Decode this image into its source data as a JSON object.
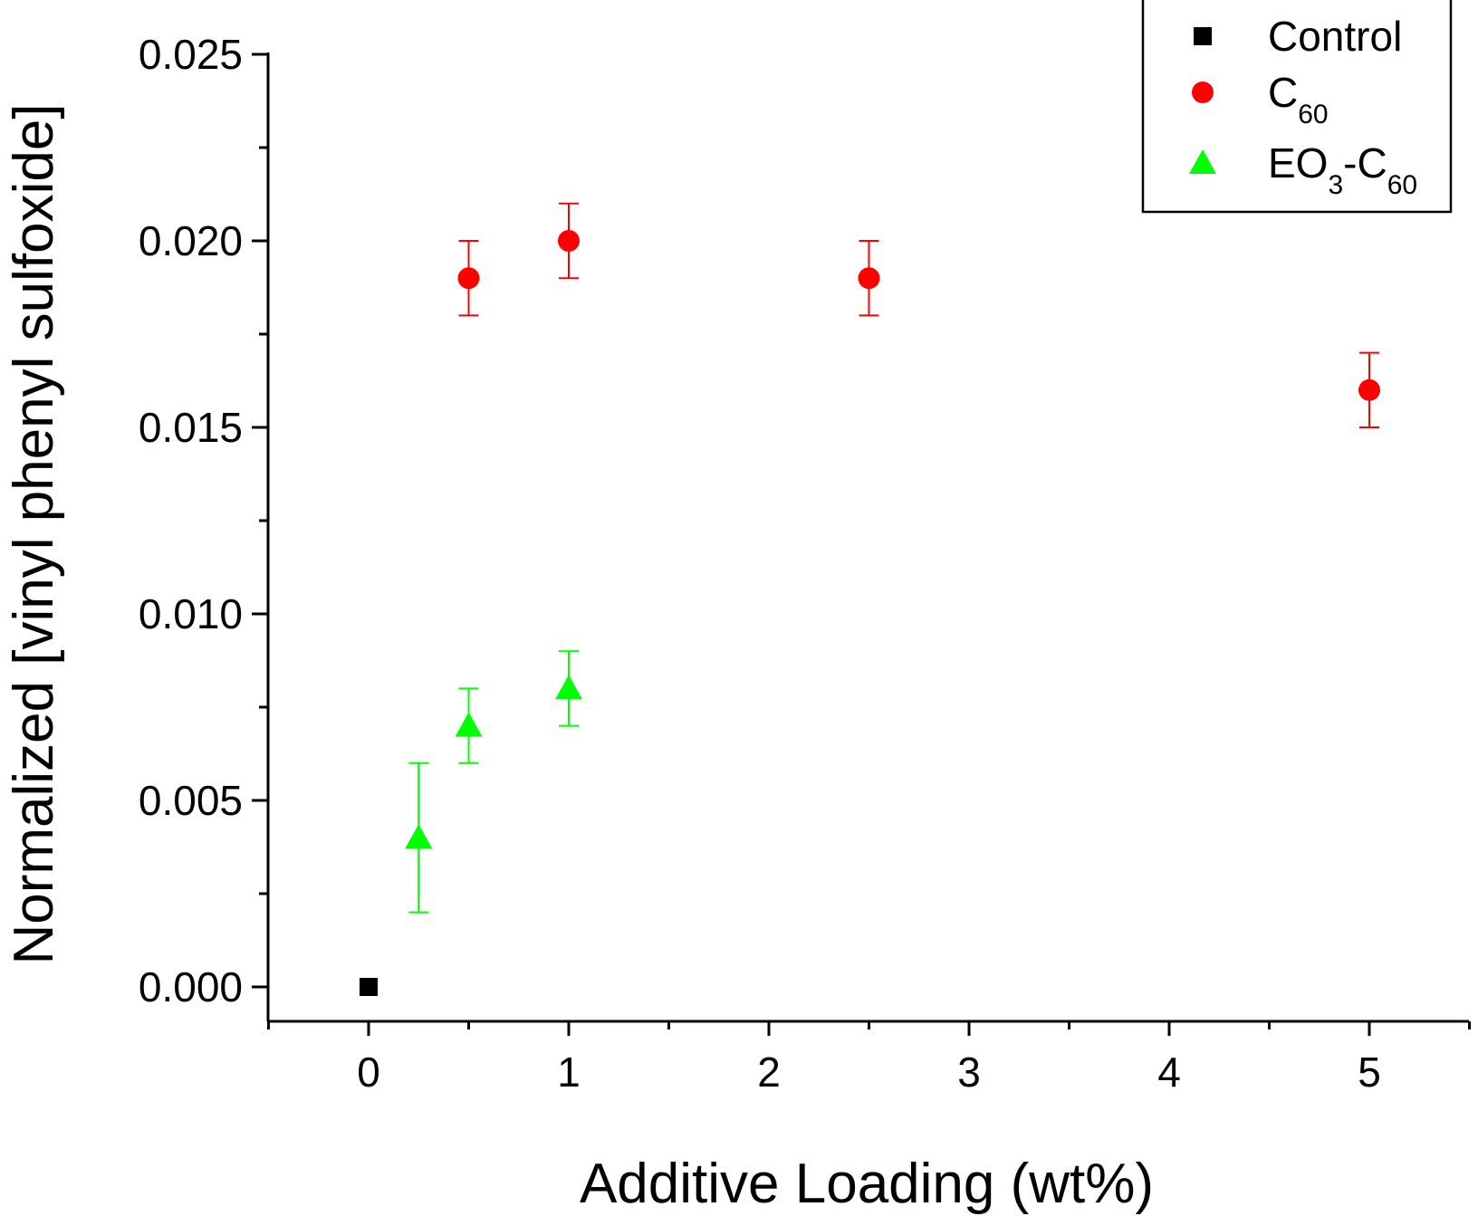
{
  "chart_data": {
    "type": "scatter",
    "title": "",
    "xlabel": "Additive Loading (wt%)",
    "ylabel": "Normalized [vinyl phenyl sulfoxide]",
    "xlim": [
      -0.5,
      5.5
    ],
    "ylim": [
      -0.001,
      0.025
    ],
    "xticks": [
      0,
      1,
      2,
      3,
      4,
      5
    ],
    "xtick_labels": [
      "0",
      "1",
      "2",
      "3",
      "4",
      "5"
    ],
    "yticks": [
      0.0,
      0.005,
      0.01,
      0.015,
      0.02,
      0.025
    ],
    "ytick_labels": [
      "0.000",
      "0.005",
      "0.010",
      "0.015",
      "0.020",
      "0.025"
    ],
    "grid": false,
    "legend_position": "top-right",
    "series": [
      {
        "name": "Control",
        "legend_main": "Control",
        "legend_sub": "",
        "legend_tail": "",
        "legend_sub2": "",
        "marker": "square",
        "color": "#000000",
        "points": [
          {
            "x": 0,
            "y": 0.0,
            "err": 0
          }
        ]
      },
      {
        "name": "C60",
        "legend_main": "C",
        "legend_sub": "60",
        "legend_tail": "",
        "legend_sub2": "",
        "marker": "circle",
        "color": "#ff0000",
        "points": [
          {
            "x": 0.5,
            "y": 0.019,
            "err": 0.001
          },
          {
            "x": 1,
            "y": 0.02,
            "err": 0.001
          },
          {
            "x": 2.5,
            "y": 0.019,
            "err": 0.001
          },
          {
            "x": 5,
            "y": 0.016,
            "err": 0.001
          }
        ]
      },
      {
        "name": "EO3-C60",
        "legend_main": "EO",
        "legend_sub": "3",
        "legend_tail": "-C",
        "legend_sub2": "60",
        "marker": "triangle",
        "color": "#00ff00",
        "points": [
          {
            "x": 0.25,
            "y": 0.004,
            "err": 0.002
          },
          {
            "x": 0.5,
            "y": 0.007,
            "err": 0.001
          },
          {
            "x": 1,
            "y": 0.008,
            "err": 0.001
          }
        ]
      }
    ]
  }
}
